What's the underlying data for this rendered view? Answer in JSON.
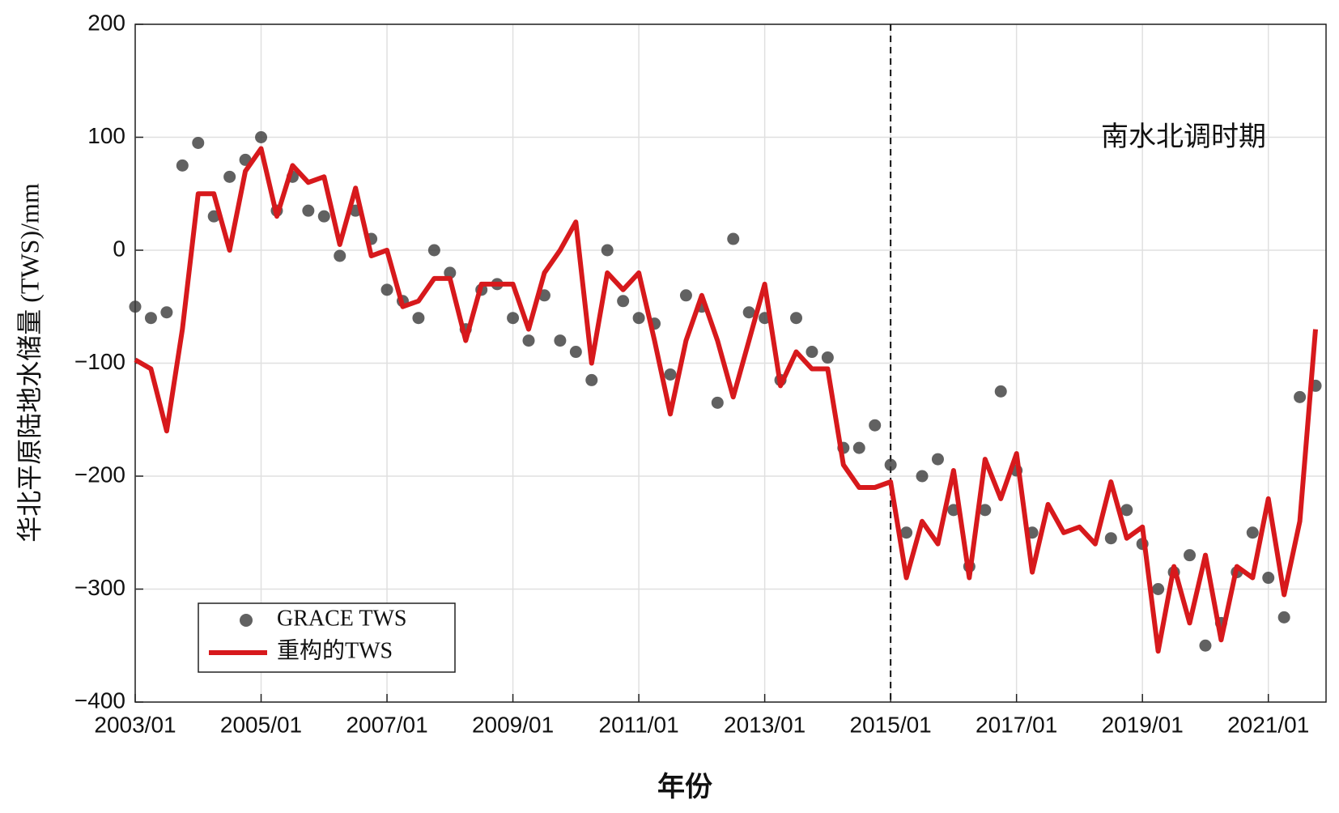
{
  "chart_data": {
    "type": "line",
    "y_label": "华北平原陆地水储量 (TWS)/mm",
    "x_label": "年份",
    "annotation": "南水北调时期",
    "vline": "2015/01",
    "x": [
      "2003/01",
      "2003/04",
      "2003/07",
      "2003/10",
      "2004/01",
      "2004/04",
      "2004/07",
      "2004/10",
      "2005/01",
      "2005/04",
      "2005/07",
      "2005/10",
      "2006/01",
      "2006/04",
      "2006/07",
      "2006/10",
      "2007/01",
      "2007/04",
      "2007/07",
      "2007/10",
      "2008/01",
      "2008/04",
      "2008/07",
      "2008/10",
      "2009/01",
      "2009/04",
      "2009/07",
      "2009/10",
      "2010/01",
      "2010/04",
      "2010/07",
      "2010/10",
      "2011/01",
      "2011/04",
      "2011/07",
      "2011/10",
      "2012/01",
      "2012/04",
      "2012/07",
      "2012/10",
      "2013/01",
      "2013/04",
      "2013/07",
      "2013/10",
      "2014/01",
      "2014/04",
      "2014/07",
      "2014/10",
      "2015/01",
      "2015/04",
      "2015/07",
      "2015/10",
      "2016/01",
      "2016/04",
      "2016/07",
      "2016/10",
      "2017/01",
      "2017/04",
      "2017/07",
      "2017/10",
      "2018/01",
      "2018/04",
      "2018/07",
      "2018/10",
      "2019/01",
      "2019/04",
      "2019/07",
      "2019/10",
      "2020/01",
      "2020/04",
      "2020/07",
      "2020/10",
      "2021/01",
      "2021/04",
      "2021/07",
      "2021/10"
    ],
    "series": [
      {
        "name": "GRACE TWS",
        "type": "scatter",
        "color": "#3a3a3a",
        "values": [
          -50,
          -60,
          -55,
          75,
          95,
          30,
          65,
          80,
          100,
          35,
          65,
          35,
          30,
          -5,
          35,
          10,
          -35,
          -45,
          -60,
          0,
          -20,
          -70,
          -35,
          -30,
          -60,
          -80,
          -40,
          -80,
          -90,
          -115,
          0,
          -45,
          -60,
          -65,
          -110,
          -40,
          -50,
          -135,
          10,
          -55,
          -60,
          -115,
          -60,
          -90,
          -95,
          -175,
          -175,
          -155,
          -190,
          -250,
          -200,
          -185,
          -230,
          -280,
          -230,
          -125,
          -195,
          -250,
          null,
          null,
          null,
          null,
          -255,
          -230,
          -260,
          -300,
          -285,
          -270,
          -350,
          -330,
          -285,
          -250,
          -290,
          -325,
          -130,
          -120
        ]
      },
      {
        "name": "重构的TWS",
        "type": "line",
        "color": "#d7191c",
        "values": [
          -97,
          -105,
          -160,
          -70,
          50,
          50,
          0,
          70,
          90,
          30,
          75,
          60,
          65,
          5,
          55,
          -5,
          0,
          -50,
          -45,
          -25,
          -25,
          -80,
          -30,
          -30,
          -30,
          -70,
          -20,
          0,
          25,
          -100,
          -20,
          -35,
          -20,
          -80,
          -145,
          -80,
          -40,
          -80,
          -130,
          -80,
          -30,
          -120,
          -90,
          -105,
          -105,
          -190,
          -210,
          -210,
          -205,
          -290,
          -240,
          -260,
          -195,
          -290,
          -185,
          -220,
          -180,
          -285,
          -225,
          -250,
          -245,
          -260,
          -205,
          -255,
          -245,
          -355,
          -280,
          -330,
          -270,
          -345,
          -280,
          -290,
          -220,
          -305,
          -240,
          -70
        ]
      }
    ],
    "xlim": [
      "2003/01",
      "2021/12"
    ],
    "xticks": [
      "2003/01",
      "2005/01",
      "2007/01",
      "2009/01",
      "2011/01",
      "2013/01",
      "2015/01",
      "2017/01",
      "2019/01",
      "2021/01"
    ],
    "ylim": [
      -400,
      200
    ],
    "yticks": [
      {
        "value": -400,
        "label": "−400"
      },
      {
        "value": -300,
        "label": "−300"
      },
      {
        "value": -200,
        "label": "−200"
      },
      {
        "value": -100,
        "label": "−100"
      },
      0,
      100,
      200
    ],
    "grid": true
  }
}
